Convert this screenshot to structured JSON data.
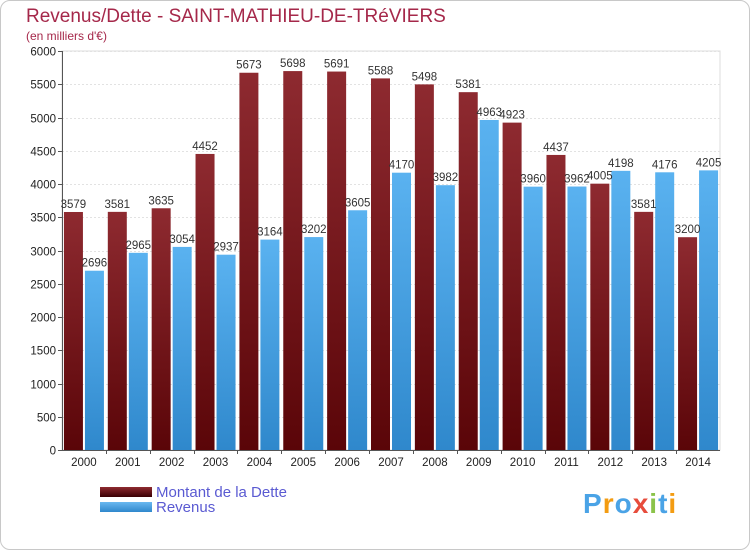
{
  "chart_data": {
    "type": "bar",
    "title": "Revenus/Dette - SAINT-MATHIEU-DE-TRéVIERS",
    "subtitle": "(en milliers d'€)",
    "xlabel": "",
    "ylabel": "",
    "ylim": [
      0,
      6000
    ],
    "yticks": [
      0,
      500,
      1000,
      1500,
      2000,
      2500,
      3000,
      3500,
      4000,
      4500,
      5000,
      5500,
      6000
    ],
    "grid": true,
    "categories": [
      "2000",
      "2001",
      "2002",
      "2003",
      "2004",
      "2005",
      "2006",
      "2007",
      "2008",
      "2009",
      "2010",
      "2011",
      "2012",
      "2013",
      "2014"
    ],
    "series": [
      {
        "name": "Montant de la Dette",
        "color": "#7a1a1e",
        "values": [
          3579,
          3581,
          3635,
          4452,
          5673,
          5698,
          5691,
          5588,
          5498,
          5381,
          4923,
          4437,
          4005,
          3581,
          3200
        ],
        "labels": [
          "3579",
          "3581",
          "3635",
          "4452",
          "5673",
          "5698",
          "5691",
          "5588",
          "5498",
          "5381",
          "4923",
          "4437",
          "4005",
          "3581",
          "3200"
        ]
      },
      {
        "name": "Revenus",
        "color": "#4aa3e6",
        "values": [
          2696,
          2965,
          3054,
          2937,
          3164,
          3202,
          3605,
          4170,
          3982,
          4963,
          3960,
          3962,
          4198,
          4176,
          4205
        ],
        "labels": [
          "2696",
          "2965",
          "3054",
          "2937",
          "3164",
          "3202",
          "3605",
          "4170",
          "3982",
          "4963",
          "3960",
          "3962",
          "4198",
          "4176",
          "4205"
        ]
      }
    ]
  },
  "legend": {
    "debt_label": "Montant de la Dette",
    "revenue_label": "Revenus"
  },
  "logo": {
    "text": "Proxiti",
    "letters": [
      {
        "ch": "P",
        "color": "#4aa3e6"
      },
      {
        "ch": "r",
        "color": "#f39c12"
      },
      {
        "ch": "o",
        "color": "#4aa3e6"
      },
      {
        "ch": "x",
        "color": "#e74c3c"
      },
      {
        "ch": "i",
        "color": "#8bc34a"
      },
      {
        "ch": "t",
        "color": "#4aa3e6"
      },
      {
        "ch": "i",
        "color": "#f39c12"
      }
    ]
  }
}
